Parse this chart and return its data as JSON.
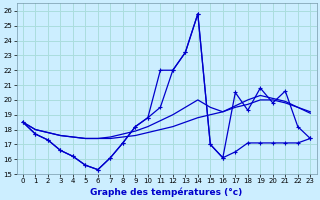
{
  "title": "Graphe des températures (°c)",
  "bg_color": "#cceeff",
  "grid_color": "#aadddd",
  "line_color": "#0000cc",
  "xlim": [
    -0.5,
    23.5
  ],
  "ylim": [
    15,
    26.5
  ],
  "xticks": [
    0,
    1,
    2,
    3,
    4,
    5,
    6,
    7,
    8,
    9,
    10,
    11,
    12,
    13,
    14,
    15,
    16,
    17,
    18,
    19,
    20,
    21,
    22,
    23
  ],
  "yticks": [
    15,
    16,
    17,
    18,
    19,
    20,
    21,
    22,
    23,
    24,
    25,
    26
  ],
  "curves": [
    {
      "x": [
        0,
        1,
        2,
        3,
        4,
        5,
        6,
        7,
        8,
        9,
        10,
        11,
        12,
        13,
        14,
        15,
        16,
        17,
        18,
        19,
        20,
        21,
        22,
        23
      ],
      "y": [
        18.5,
        17.7,
        17.3,
        16.6,
        16.2,
        15.6,
        15.3,
        16.1,
        17.1,
        18.2,
        18.8,
        19.5,
        22.0,
        23.2,
        25.8,
        17.0,
        16.1,
        16.5,
        17.1,
        17.1,
        17.1,
        17.1,
        17.1,
        17.4
      ],
      "marker": "+"
    },
    {
      "x": [
        0,
        1,
        2,
        3,
        4,
        5,
        6,
        7,
        8,
        9,
        10,
        11,
        12,
        13,
        14,
        15,
        16,
        17,
        18,
        19,
        20,
        21,
        22,
        23
      ],
      "y": [
        18.5,
        17.7,
        17.3,
        16.6,
        16.2,
        15.6,
        15.3,
        16.1,
        17.1,
        18.2,
        18.8,
        22.0,
        22.0,
        23.2,
        25.8,
        17.0,
        16.1,
        20.5,
        19.3,
        20.8,
        19.8,
        20.6,
        18.2,
        17.4
      ],
      "marker": "+"
    },
    {
      "x": [
        0,
        1,
        2,
        3,
        4,
        5,
        6,
        7,
        8,
        9,
        10,
        11,
        12,
        13,
        14,
        15,
        16,
        17,
        18,
        19,
        20,
        21,
        22,
        23
      ],
      "y": [
        18.5,
        18.0,
        17.8,
        17.6,
        17.5,
        17.4,
        17.4,
        17.4,
        17.5,
        17.6,
        17.8,
        18.0,
        18.2,
        18.5,
        18.8,
        19.0,
        19.2,
        19.5,
        19.7,
        20.0,
        20.0,
        19.8,
        19.5,
        19.2
      ],
      "marker": null
    },
    {
      "x": [
        0,
        1,
        2,
        3,
        4,
        5,
        6,
        7,
        8,
        9,
        10,
        11,
        12,
        13,
        14,
        15,
        16,
        17,
        18,
        19,
        20,
        21,
        22,
        23
      ],
      "y": [
        18.5,
        18.0,
        17.8,
        17.6,
        17.5,
        17.4,
        17.4,
        17.5,
        17.7,
        17.9,
        18.2,
        18.6,
        19.0,
        19.5,
        20.0,
        19.5,
        19.2,
        19.6,
        20.0,
        20.3,
        20.1,
        19.9,
        19.5,
        19.1
      ],
      "marker": null
    }
  ]
}
